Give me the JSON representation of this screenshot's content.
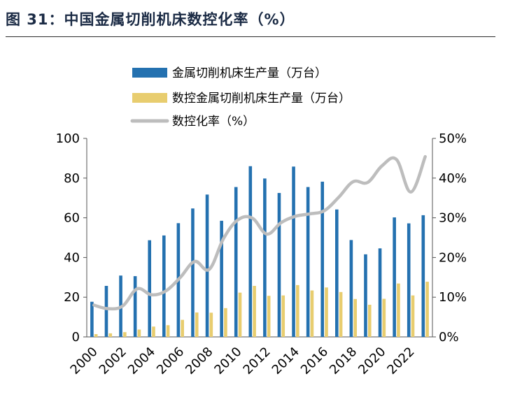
{
  "figure": {
    "title": "图 31：中国金属切削机床数控化率（%）"
  },
  "colors": {
    "bar_total": "#2471b0",
    "bar_cnc": "#e8cd6f",
    "line_rate": "#bdbdbd"
  },
  "chart_data": {
    "type": "bar+line",
    "categories": [
      "2000",
      "2001",
      "2002",
      "2003",
      "2004",
      "2005",
      "2006",
      "2007",
      "2008",
      "2009",
      "2010",
      "2011",
      "2012",
      "2013",
      "2014",
      "2015",
      "2016",
      "2017",
      "2018",
      "2019",
      "2020",
      "2021",
      "2022",
      "2023"
    ],
    "x_tick_labels": [
      "2000",
      "2002",
      "2004",
      "2006",
      "2008",
      "2010",
      "2012",
      "2014",
      "2016",
      "2018",
      "2020",
      "2022"
    ],
    "series": [
      {
        "name": "金属切削机床生产量（万台）",
        "kind": "bar",
        "axis": "left",
        "values": [
          17.7,
          25.7,
          30.9,
          30.6,
          48.7,
          51.1,
          57.3,
          64.7,
          71.7,
          58.5,
          75.5,
          86.0,
          79.8,
          72.5,
          85.8,
          75.5,
          78.2,
          64.2,
          48.8,
          41.6,
          44.6,
          60.2,
          57.2,
          61.3
        ]
      },
      {
        "name": "数控金属切削机床生产量（万台）",
        "kind": "bar",
        "axis": "left",
        "values": [
          1.4,
          1.8,
          2.4,
          3.7,
          5.2,
          5.9,
          8.6,
          12.3,
          12.2,
          14.5,
          22.3,
          25.7,
          20.7,
          20.9,
          26.1,
          23.4,
          24.9,
          22.6,
          19.1,
          16.2,
          19.2,
          26.9,
          20.9,
          27.8
        ]
      },
      {
        "name": "数控化率（%）",
        "kind": "line",
        "axis": "right",
        "values": [
          8.0,
          7.1,
          7.8,
          12.1,
          10.6,
          11.6,
          15.0,
          19.0,
          17.0,
          24.8,
          29.5,
          29.9,
          25.9,
          28.8,
          30.4,
          31.0,
          31.8,
          35.2,
          39.1,
          38.9,
          43.1,
          44.7,
          36.5,
          45.4
        ]
      }
    ],
    "y_left": {
      "lim": [
        0,
        100
      ],
      "ticks": [
        "0",
        "20",
        "40",
        "60",
        "80",
        "100"
      ]
    },
    "y_right": {
      "lim": [
        0,
        50
      ],
      "ticks": [
        "0%",
        "10%",
        "20%",
        "30%",
        "40%",
        "50%"
      ]
    },
    "legend_position": "top-left"
  }
}
